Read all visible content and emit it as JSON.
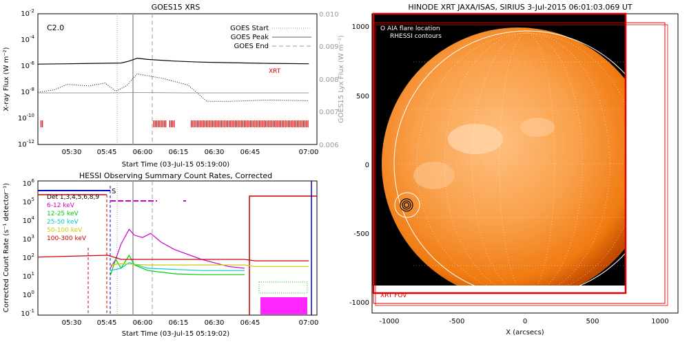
{
  "panels": {
    "goes": {
      "title": "GOES15 XRS",
      "class_label": "C2.0",
      "ylabel_left": "X-ray Flux (W m⁻²)",
      "ylabel_right": "GOES15 Lyx Flux (W m⁻²)",
      "xlabel": "Start Time (03-Jul-15 05:19:00)",
      "legend": [
        "GOES Start",
        "GOES Peak",
        "GOES End"
      ],
      "xrt_label": "XRT"
    },
    "hessi": {
      "title": "HESSI Observing Summary Count Rates, Corrected",
      "ylabel": "Corrected Count Rate (s⁻¹ detector⁻¹)",
      "xlabel": "Start Time (03-Jul-15 05:19:02)",
      "s_marker": "S",
      "detectors_label": "Det 1,3,4,5,6,8,9"
    },
    "xrt": {
      "title": "HINODE XRT JAXA/ISAS, SIRIUS  3-Jul-2015 06:01:03.069 UT",
      "legend_line1": "O AIA flare location",
      "legend_line2": "RHESSI contours",
      "fov_label": "XRT FOV",
      "xlabel": "X (arcsecs)"
    }
  },
  "colors": {
    "xrt_red": "#e00000",
    "sun_orange": "#f07a10",
    "hessi_blue": "#0000cc"
  },
  "chart_data": [
    {
      "type": "line",
      "title": "GOES15 XRS",
      "xlabel": "Start Time (03-Jul-15 05:19:00)",
      "ylabel": "X-ray Flux (W m⁻²)",
      "x_ticks": [
        "05:30",
        "05:45",
        "06:00",
        "06:15",
        "06:30",
        "06:45",
        "07:00"
      ],
      "y_tick_exponents": [
        -2,
        -4,
        -6,
        -8,
        -10,
        -12
      ],
      "y2_ticks": [
        "0.010",
        "0.009",
        "0.008",
        "0.007",
        "0.006"
      ],
      "xlim": [
        "05:19",
        "07:03"
      ],
      "ylim": [
        1e-12,
        0.01
      ],
      "y2lim": [
        0.006,
        0.01
      ],
      "markers": {
        "start": "05:49",
        "peak": "05:56",
        "end": "06:03"
      },
      "series": [
        {
          "name": "",
          "x": [
            "05:19",
            "05:30",
            "05:40",
            "05:50",
            "05:53",
            "05:56",
            "06:00",
            "06:10",
            "06:20",
            "06:30",
            "06:45",
            "07:00"
          ],
          "y": [
            1.4e-06,
            1.5e-06,
            1.6e-06,
            1.7e-06,
            2.4e-06,
            4e-06,
            3.2e-06,
            2.4e-06,
            2e-06,
            1.8e-06,
            1.6e-06,
            1.5e-06
          ]
        },
        {
          "name": "",
          "x": [
            "05:19",
            "05:25",
            "05:30",
            "05:38",
            "05:44",
            "05:48",
            "05:52",
            "05:56",
            "06:05",
            "06:15",
            "06:22",
            "06:30",
            "06:45",
            "07:00"
          ],
          "y": [
            1e-08,
            1.5e-08,
            4e-08,
            3e-08,
            5e-08,
            1.2e-08,
            3e-08,
            2.5e-07,
            1.2e-07,
            3.5e-08,
            2e-09,
            2e-09,
            2.5e-09,
            2.2e-09
          ]
        },
        {
          "name": "",
          "x": [
            "05:19",
            "05:45",
            "05:56",
            "06:15",
            "06:45",
            "07:00"
          ],
          "y": [
            0.00758,
            0.00758,
            0.00759,
            0.00758,
            0.00758,
            0.00758
          ]
        }
      ],
      "xrt_observation_intervals": [
        [
          "05:20",
          "05:21"
        ],
        [
          "06:02",
          "06:07"
        ],
        [
          "06:08",
          "06:10"
        ],
        [
          "06:16",
          "07:00"
        ]
      ]
    },
    {
      "type": "line",
      "title": "HESSI Observing Summary Count Rates, Corrected",
      "xlabel": "Start Time (03-Jul-15 05:19:02)",
      "ylabel": "Corrected Count Rate (s⁻¹ detector⁻¹)",
      "x_ticks": [
        "05:30",
        "05:45",
        "06:00",
        "06:15",
        "06:30",
        "06:45",
        "07:00"
      ],
      "y_tick_exponents": [
        6,
        5,
        4,
        3,
        2,
        1,
        0,
        -1
      ],
      "ylim": [
        0.1,
        1000000.0
      ],
      "markers": {
        "start": "05:49",
        "peak": "05:56",
        "end": "06:03"
      },
      "series": [
        {
          "name": "6-12 keV",
          "color": "#cc00cc",
          "x": [
            "05:46",
            "05:48",
            "05:50",
            "05:53",
            "05:55",
            "05:58",
            "06:01",
            "06:05",
            "06:10",
            "06:20",
            "06:30",
            "06:36"
          ],
          "y": [
            20,
            60,
            400,
            2500,
            1200,
            900,
            1500,
            500,
            200,
            60,
            25,
            20
          ]
        },
        {
          "name": "12-25 keV",
          "color": "#00cc00",
          "x": [
            "05:46",
            "05:48",
            "05:50",
            "05:53",
            "05:55",
            "06:00",
            "06:10",
            "06:20",
            "06:36"
          ],
          "y": [
            8,
            60,
            20,
            100,
            30,
            15,
            10,
            9,
            9
          ]
        },
        {
          "name": "25-50 keV",
          "color": "#00cccc",
          "x": [
            "05:46",
            "05:50",
            "05:53",
            "06:00",
            "06:20",
            "06:36"
          ],
          "y": [
            15,
            20,
            40,
            20,
            15,
            15
          ]
        },
        {
          "name": "50-100 keV",
          "color": "#cccc00",
          "x": [
            "05:46",
            "05:50",
            "06:00",
            "06:36",
            "06:40",
            "07:00"
          ],
          "y": [
            30,
            35,
            30,
            30,
            25,
            25
          ]
        },
        {
          "name": "100-300 keV",
          "color": "#cc0000",
          "x": [
            "05:19",
            "05:45",
            "05:50",
            "06:00",
            "06:36",
            "06:40",
            "07:00"
          ],
          "y": [
            80,
            100,
            60,
            60,
            60,
            50,
            50
          ]
        }
      ]
    }
  ]
}
